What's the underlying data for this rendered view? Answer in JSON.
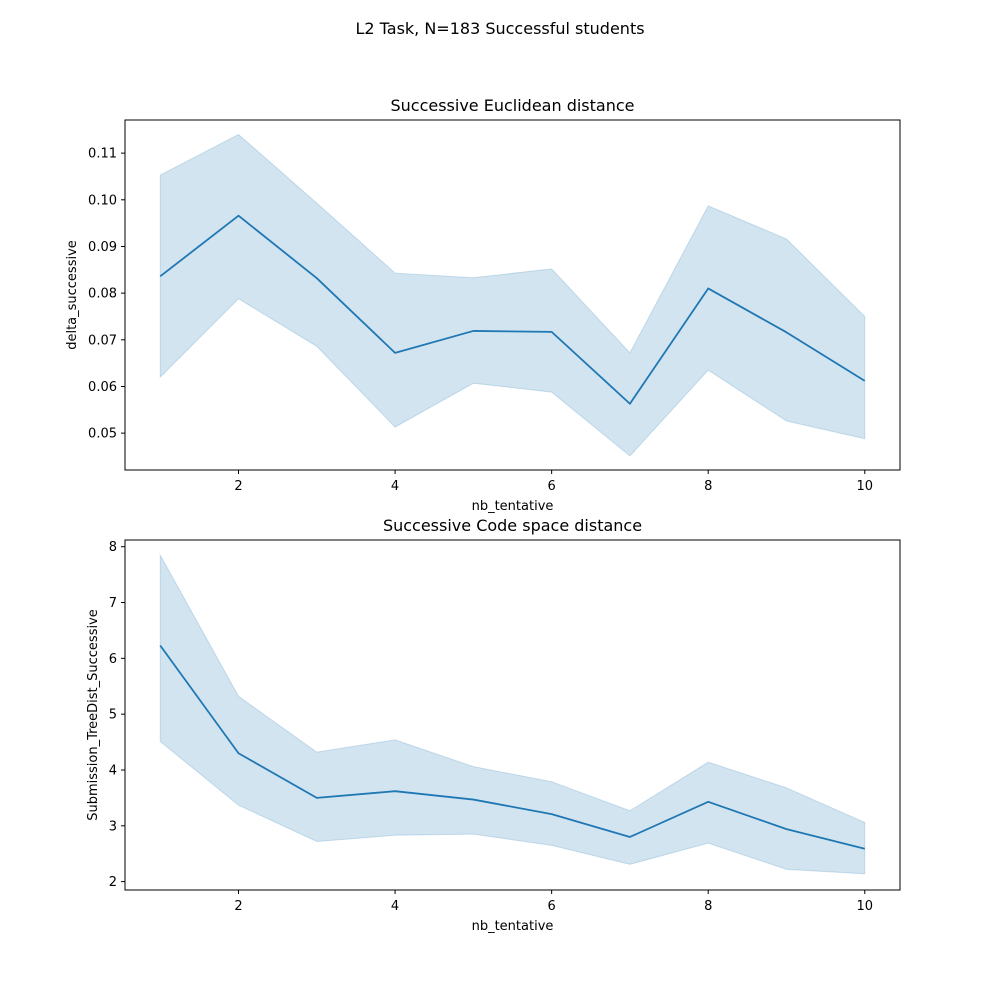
{
  "figure": {
    "suptitle": "L2 Task, N=183 Successful students"
  },
  "chart_data": [
    {
      "type": "line",
      "title": "Successive Euclidean distance",
      "xlabel": "nb_tentative",
      "ylabel": "delta_successive",
      "xlim": [
        0.55,
        10.45
      ],
      "ylim": [
        0.0421,
        0.1171
      ],
      "x_ticks": [
        2,
        4,
        6,
        8,
        10
      ],
      "x_tick_labels": [
        "2",
        "4",
        "6",
        "8",
        "10"
      ],
      "y_ticks": [
        0.05,
        0.06,
        0.07,
        0.08,
        0.09,
        0.1,
        0.11
      ],
      "y_tick_labels": [
        "0.05",
        "0.06",
        "0.07",
        "0.08",
        "0.09",
        "0.10",
        "0.11"
      ],
      "grid": false,
      "color": "#1f77b4",
      "x": [
        1,
        2,
        3,
        4,
        5,
        6,
        7,
        8,
        9,
        10
      ],
      "series": [
        {
          "values": [
            0.0836,
            0.0966,
            0.0832,
            0.0672,
            0.0719,
            0.0717,
            0.0563,
            0.081,
            0.0716,
            0.0612
          ],
          "ci_lower": [
            0.062,
            0.0788,
            0.0686,
            0.0513,
            0.0607,
            0.0588,
            0.0451,
            0.0635,
            0.0526,
            0.0488
          ],
          "ci_upper": [
            0.1053,
            0.114,
            0.0993,
            0.0843,
            0.0833,
            0.0852,
            0.0672,
            0.0987,
            0.0916,
            0.075
          ]
        }
      ]
    },
    {
      "type": "line",
      "title": "Successive Code space distance",
      "xlabel": "nb_tentative",
      "ylabel": "Submission_TreeDist_Successive",
      "xlim": [
        0.55,
        10.45
      ],
      "ylim": [
        1.85,
        8.12
      ],
      "x_ticks": [
        2,
        4,
        6,
        8,
        10
      ],
      "x_tick_labels": [
        "2",
        "4",
        "6",
        "8",
        "10"
      ],
      "y_ticks": [
        2,
        3,
        4,
        5,
        6,
        7,
        8
      ],
      "y_tick_labels": [
        "2",
        "3",
        "4",
        "5",
        "6",
        "7",
        "8"
      ],
      "grid": false,
      "color": "#1f77b4",
      "x": [
        1,
        2,
        3,
        4,
        5,
        6,
        7,
        8,
        9,
        10
      ],
      "series": [
        {
          "values": [
            6.23,
            4.3,
            3.5,
            3.62,
            3.47,
            3.21,
            2.8,
            3.43,
            2.94,
            2.59
          ],
          "ci_lower": [
            4.51,
            3.37,
            2.72,
            2.83,
            2.85,
            2.65,
            2.31,
            2.69,
            2.22,
            2.14
          ],
          "ci_upper": [
            7.85,
            5.32,
            4.32,
            4.54,
            4.06,
            3.79,
            3.27,
            4.14,
            3.68,
            3.06
          ]
        }
      ]
    }
  ]
}
